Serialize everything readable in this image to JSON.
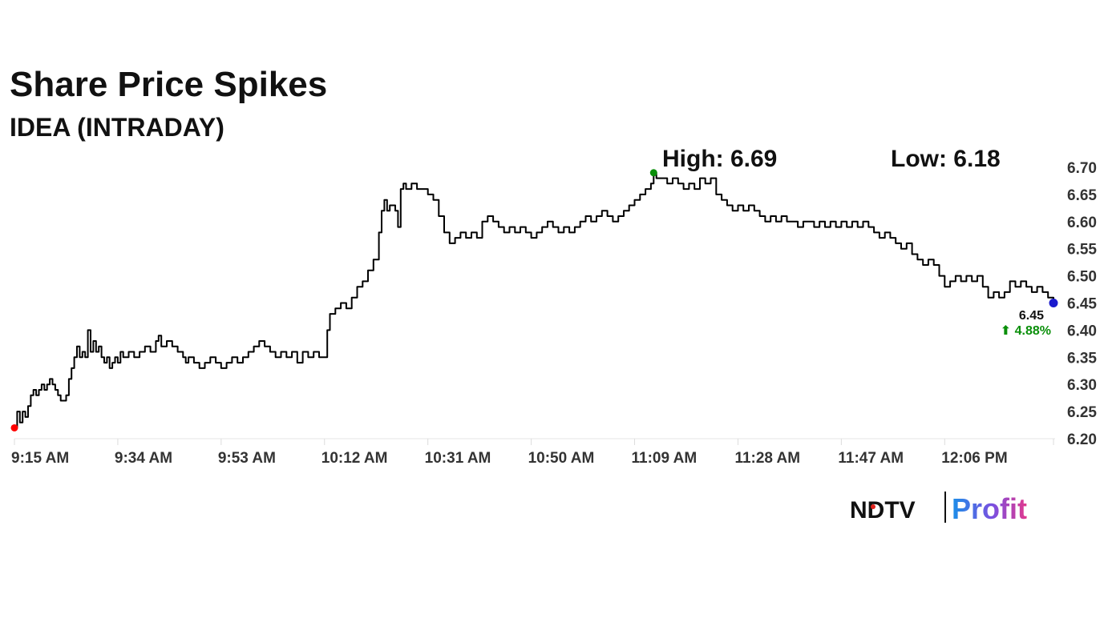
{
  "chart_data": {
    "type": "line",
    "title": "Share Price Spikes",
    "subtitle": "IDEA (INTRADAY)",
    "high_label": "High: 6.69",
    "low_label": "Low: 6.18",
    "x_tick_labels": [
      "9:15 AM",
      "9:34 AM",
      "9:53 AM",
      "10:12 AM",
      "10:31 AM",
      "10:50 AM",
      "11:09 AM",
      "11:28 AM",
      "11:47 AM",
      "12:06 PM"
    ],
    "x_tick_minutes": [
      0,
      19,
      38,
      57,
      76,
      95,
      114,
      133,
      152,
      171
    ],
    "y_tick_labels": [
      "6.70",
      "6.65",
      "6.60",
      "6.55",
      "6.50",
      "6.45",
      "6.40",
      "6.35",
      "6.30",
      "6.25",
      "6.20"
    ],
    "ylim": [
      6.2,
      6.7
    ],
    "x_range_minutes": [
      0,
      191
    ],
    "x_axis_start_time": "9:15 AM",
    "grid": false,
    "series": [
      {
        "color": "#000000",
        "points": [
          [
            0,
            6.22
          ],
          [
            0.5,
            6.25
          ],
          [
            1,
            6.23
          ],
          [
            1.5,
            6.25
          ],
          [
            2,
            6.24
          ],
          [
            2.5,
            6.26
          ],
          [
            3,
            6.28
          ],
          [
            3.5,
            6.29
          ],
          [
            4,
            6.28
          ],
          [
            4.5,
            6.29
          ],
          [
            5,
            6.3
          ],
          [
            5.5,
            6.29
          ],
          [
            6,
            6.3
          ],
          [
            6.5,
            6.31
          ],
          [
            7,
            6.3
          ],
          [
            7.5,
            6.29
          ],
          [
            8,
            6.28
          ],
          [
            8.5,
            6.27
          ],
          [
            9,
            6.27
          ],
          [
            9.5,
            6.28
          ],
          [
            10,
            6.31
          ],
          [
            10.5,
            6.33
          ],
          [
            11,
            6.35
          ],
          [
            11.5,
            6.37
          ],
          [
            12,
            6.35
          ],
          [
            12.5,
            6.36
          ],
          [
            13,
            6.35
          ],
          [
            13.5,
            6.4
          ],
          [
            14,
            6.36
          ],
          [
            14.5,
            6.38
          ],
          [
            15,
            6.36
          ],
          [
            15.5,
            6.37
          ],
          [
            16,
            6.35
          ],
          [
            16.5,
            6.34
          ],
          [
            17,
            6.35
          ],
          [
            17.5,
            6.33
          ],
          [
            18,
            6.34
          ],
          [
            18.5,
            6.35
          ],
          [
            19,
            6.34
          ],
          [
            19.5,
            6.36
          ],
          [
            20,
            6.35
          ],
          [
            21,
            6.36
          ],
          [
            22,
            6.35
          ],
          [
            23,
            6.36
          ],
          [
            24,
            6.37
          ],
          [
            25,
            6.36
          ],
          [
            26,
            6.38
          ],
          [
            26.5,
            6.39
          ],
          [
            27,
            6.37
          ],
          [
            28,
            6.38
          ],
          [
            29,
            6.37
          ],
          [
            30,
            6.36
          ],
          [
            31,
            6.35
          ],
          [
            31.5,
            6.34
          ],
          [
            32,
            6.35
          ],
          [
            33,
            6.34
          ],
          [
            34,
            6.33
          ],
          [
            35,
            6.34
          ],
          [
            36,
            6.35
          ],
          [
            37,
            6.34
          ],
          [
            38,
            6.33
          ],
          [
            39,
            6.34
          ],
          [
            40,
            6.35
          ],
          [
            41,
            6.34
          ],
          [
            42,
            6.35
          ],
          [
            43,
            6.36
          ],
          [
            44,
            6.37
          ],
          [
            45,
            6.38
          ],
          [
            46,
            6.37
          ],
          [
            47,
            6.36
          ],
          [
            48,
            6.35
          ],
          [
            49,
            6.36
          ],
          [
            50,
            6.35
          ],
          [
            51,
            6.36
          ],
          [
            52,
            6.34
          ],
          [
            53,
            6.36
          ],
          [
            54,
            6.35
          ],
          [
            55,
            6.36
          ],
          [
            56,
            6.35
          ],
          [
            57,
            6.35
          ],
          [
            57.5,
            6.4
          ],
          [
            58,
            6.43
          ],
          [
            59,
            6.44
          ],
          [
            60,
            6.45
          ],
          [
            61,
            6.44
          ],
          [
            62,
            6.46
          ],
          [
            63,
            6.48
          ],
          [
            64,
            6.49
          ],
          [
            65,
            6.51
          ],
          [
            66,
            6.53
          ],
          [
            67,
            6.58
          ],
          [
            67.5,
            6.62
          ],
          [
            68,
            6.64
          ],
          [
            68.5,
            6.62
          ],
          [
            69,
            6.63
          ],
          [
            70,
            6.62
          ],
          [
            70.5,
            6.59
          ],
          [
            71,
            6.66
          ],
          [
            71.5,
            6.67
          ],
          [
            72,
            6.66
          ],
          [
            73,
            6.67
          ],
          [
            74,
            6.66
          ],
          [
            75,
            6.66
          ],
          [
            76,
            6.65
          ],
          [
            77,
            6.64
          ],
          [
            78,
            6.61
          ],
          [
            79,
            6.58
          ],
          [
            80,
            6.56
          ],
          [
            81,
            6.57
          ],
          [
            82,
            6.58
          ],
          [
            83,
            6.57
          ],
          [
            84,
            6.58
          ],
          [
            85,
            6.57
          ],
          [
            86,
            6.6
          ],
          [
            87,
            6.61
          ],
          [
            88,
            6.6
          ],
          [
            89,
            6.59
          ],
          [
            90,
            6.58
          ],
          [
            91,
            6.59
          ],
          [
            92,
            6.58
          ],
          [
            93,
            6.59
          ],
          [
            94,
            6.58
          ],
          [
            95,
            6.57
          ],
          [
            96,
            6.58
          ],
          [
            97,
            6.59
          ],
          [
            98,
            6.6
          ],
          [
            99,
            6.59
          ],
          [
            100,
            6.58
          ],
          [
            101,
            6.59
          ],
          [
            102,
            6.58
          ],
          [
            103,
            6.59
          ],
          [
            104,
            6.6
          ],
          [
            105,
            6.61
          ],
          [
            106,
            6.6
          ],
          [
            107,
            6.61
          ],
          [
            108,
            6.62
          ],
          [
            109,
            6.61
          ],
          [
            110,
            6.6
          ],
          [
            111,
            6.61
          ],
          [
            112,
            6.62
          ],
          [
            113,
            6.63
          ],
          [
            114,
            6.64
          ],
          [
            115,
            6.65
          ],
          [
            116,
            6.66
          ],
          [
            117,
            6.67
          ],
          [
            117.5,
            6.69
          ],
          [
            118,
            6.68
          ],
          [
            119,
            6.68
          ],
          [
            120,
            6.67
          ],
          [
            121,
            6.68
          ],
          [
            122,
            6.67
          ],
          [
            123,
            6.66
          ],
          [
            124,
            6.67
          ],
          [
            125,
            6.66
          ],
          [
            126,
            6.68
          ],
          [
            127,
            6.67
          ],
          [
            128,
            6.68
          ],
          [
            129,
            6.65
          ],
          [
            130,
            6.64
          ],
          [
            131,
            6.63
          ],
          [
            132,
            6.62
          ],
          [
            133,
            6.63
          ],
          [
            134,
            6.62
          ],
          [
            135,
            6.63
          ],
          [
            136,
            6.62
          ],
          [
            137,
            6.61
          ],
          [
            138,
            6.6
          ],
          [
            139,
            6.61
          ],
          [
            140,
            6.6
          ],
          [
            141,
            6.61
          ],
          [
            142,
            6.6
          ],
          [
            143,
            6.6
          ],
          [
            144,
            6.59
          ],
          [
            145,
            6.6
          ],
          [
            146,
            6.6
          ],
          [
            147,
            6.59
          ],
          [
            148,
            6.6
          ],
          [
            149,
            6.59
          ],
          [
            150,
            6.6
          ],
          [
            151,
            6.59
          ],
          [
            152,
            6.6
          ],
          [
            153,
            6.59
          ],
          [
            154,
            6.6
          ],
          [
            155,
            6.59
          ],
          [
            156,
            6.6
          ],
          [
            157,
            6.59
          ],
          [
            158,
            6.58
          ],
          [
            159,
            6.57
          ],
          [
            160,
            6.58
          ],
          [
            161,
            6.57
          ],
          [
            162,
            6.56
          ],
          [
            163,
            6.55
          ],
          [
            164,
            6.56
          ],
          [
            165,
            6.54
          ],
          [
            166,
            6.53
          ],
          [
            167,
            6.52
          ],
          [
            168,
            6.53
          ],
          [
            169,
            6.52
          ],
          [
            170,
            6.5
          ],
          [
            171,
            6.48
          ],
          [
            172,
            6.49
          ],
          [
            173,
            6.5
          ],
          [
            174,
            6.49
          ],
          [
            175,
            6.5
          ],
          [
            176,
            6.49
          ],
          [
            177,
            6.5
          ],
          [
            178,
            6.48
          ],
          [
            179,
            6.46
          ],
          [
            180,
            6.47
          ],
          [
            181,
            6.46
          ],
          [
            182,
            6.47
          ],
          [
            183,
            6.49
          ],
          [
            184,
            6.48
          ],
          [
            185,
            6.49
          ],
          [
            186,
            6.48
          ],
          [
            187,
            6.47
          ],
          [
            188,
            6.48
          ],
          [
            189,
            6.47
          ],
          [
            190,
            6.46
          ],
          [
            191,
            6.45
          ]
        ]
      }
    ],
    "markers": [
      {
        "label": "start",
        "x": 0,
        "y": 6.22,
        "color": "#ff0000"
      },
      {
        "label": "high",
        "x": 117.5,
        "y": 6.69,
        "color": "#0a8f0a"
      },
      {
        "label": "last",
        "x": 191,
        "y": 6.45,
        "color": "#1a1acd"
      }
    ],
    "last_price_label": "6.45",
    "change_label": "⬆ 4.88%",
    "change_color": "#0a8f0a"
  },
  "brand": {
    "ndtv": "NDTV",
    "profit": "Profit"
  }
}
